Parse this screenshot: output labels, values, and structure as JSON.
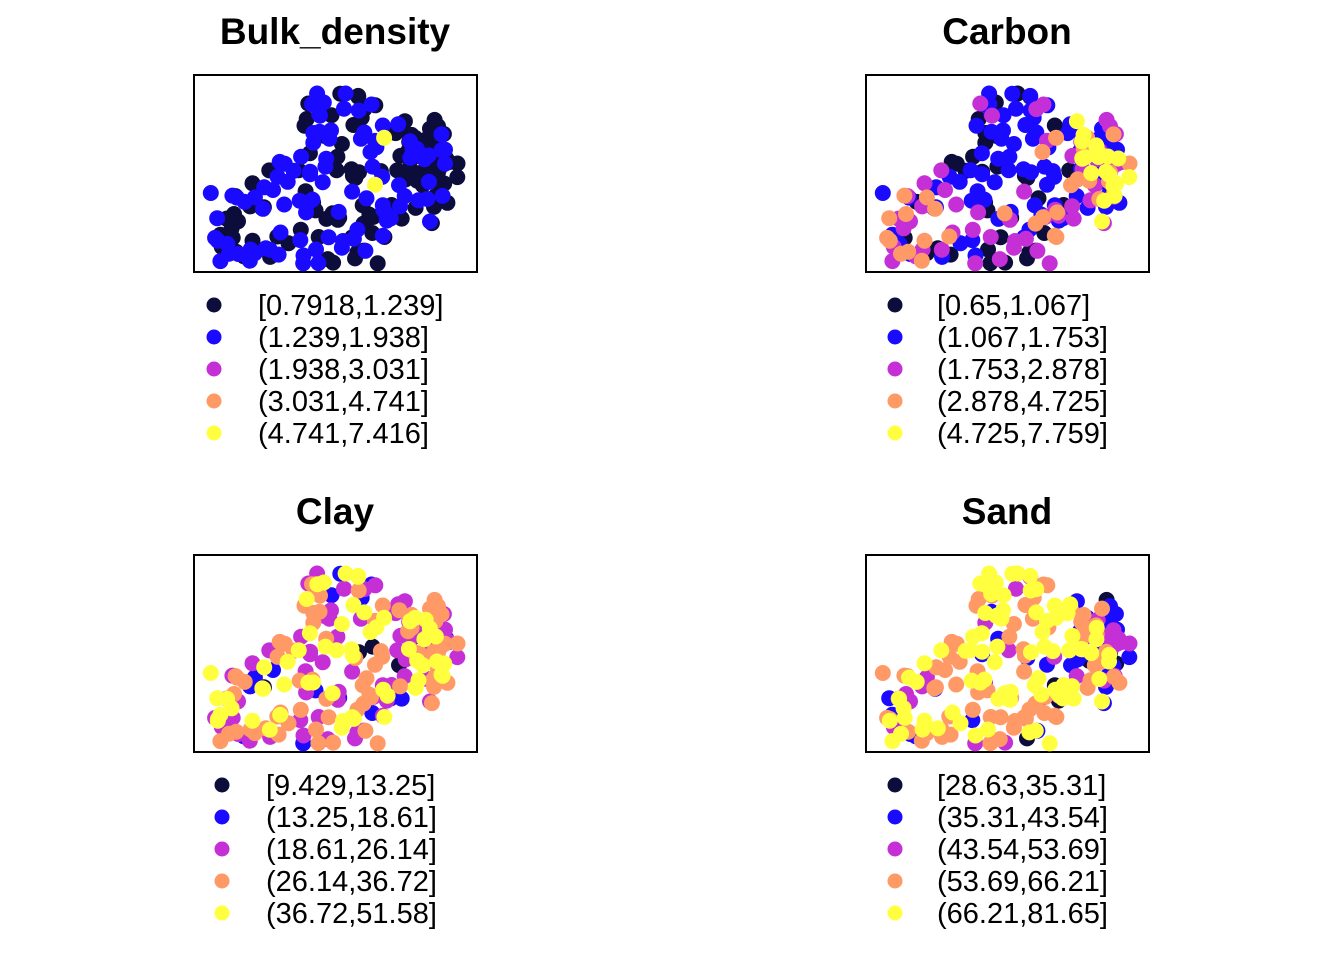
{
  "palette": [
    "#0d0d3b",
    "#1a0aff",
    "#c530d6",
    "#ff9966",
    "#ffff40"
  ],
  "chart_data": [
    {
      "type": "scatter",
      "title": "Bulk_density",
      "legend": [
        "[0.7918,1.239]",
        "(1.239,1.938]",
        "(1.938,3.031]",
        "(3.031,4.741]",
        "(4.741,7.416]"
      ],
      "points": []
    },
    {
      "type": "scatter",
      "title": "Carbon",
      "legend": [
        "[0.65,1.067]",
        "(1.067,1.753]",
        "(1.753,2.878]",
        "(2.878,4.725]",
        "(4.725,7.759]"
      ],
      "points": []
    },
    {
      "type": "scatter",
      "title": "Clay",
      "legend": [
        "[9.429,13.25]",
        "(13.25,18.61]",
        "(18.61,26.14]",
        "(26.14,36.72]",
        "(36.72,51.58]"
      ],
      "points": []
    },
    {
      "type": "scatter",
      "title": "Sand",
      "legend": [
        "[28.63,35.31]",
        "(35.31,43.54]",
        "(43.54,53.69]",
        "(53.69,66.21]",
        "(66.21,81.65]"
      ],
      "points": []
    }
  ]
}
